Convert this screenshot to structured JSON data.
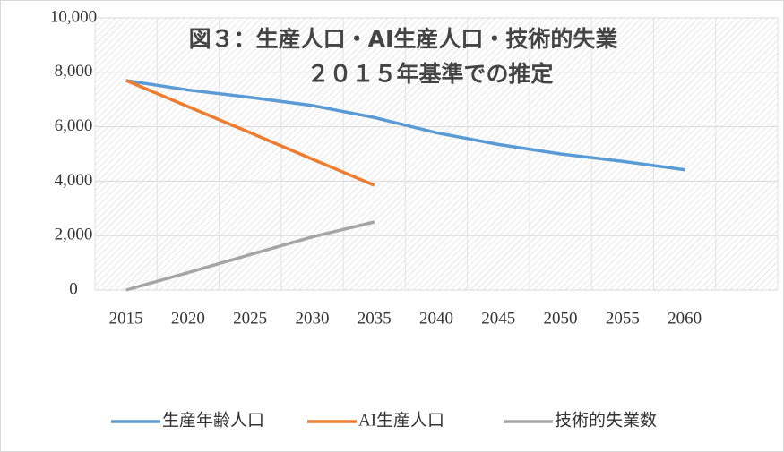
{
  "chart_data": {
    "type": "line",
    "title": "図３：生産人口・AI生産人口・技術的失業",
    "subtitle": "２０１５年基準での推定",
    "categories": [
      "2015",
      "2020",
      "2025",
      "2030",
      "2035",
      "2040",
      "2045",
      "2050",
      "2055",
      "2060",
      null
    ],
    "series": [
      {
        "name": "生産年齢人口",
        "color": "#5b9bd5",
        "values": [
          7700,
          7350,
          7080,
          6780,
          6340,
          5780,
          5350,
          5000,
          4730,
          4420,
          null
        ]
      },
      {
        "name": "AI生産人口",
        "color": "#ed7d31",
        "values": [
          7700,
          6740,
          5780,
          4810,
          3850,
          null,
          null,
          null,
          null,
          null,
          null
        ]
      },
      {
        "name": "技術的失業数",
        "color": "#a5a5a5",
        "values": [
          0,
          640,
          1300,
          1950,
          2500,
          null,
          null,
          null,
          null,
          null,
          null
        ]
      }
    ],
    "ylim": [
      0,
      10000
    ],
    "yticks": [
      0,
      {
        "value": 2000,
        "label": "2,000"
      },
      {
        "value": 4000,
        "label": "4,000"
      },
      {
        "value": 6000,
        "label": "6,000"
      },
      {
        "value": 8000,
        "label": "8,000"
      },
      {
        "value": 10000,
        "label": "10,000"
      }
    ],
    "grid": true,
    "legend": "bottom"
  }
}
